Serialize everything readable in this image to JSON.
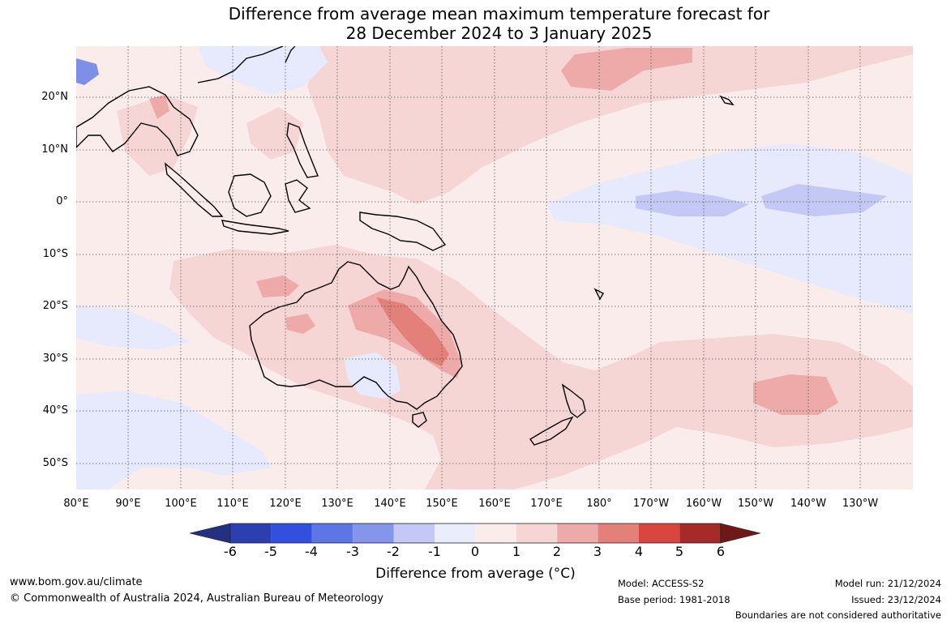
{
  "title": {
    "line1": "Difference from average mean maximum temperature forecast for",
    "line2": "28 December 2024 to 3 January 2025"
  },
  "map": {
    "lat_labels": [
      "20°N",
      "10°N",
      "0°",
      "10°S",
      "20°S",
      "30°S",
      "40°S",
      "50°S"
    ],
    "lon_labels": [
      "80°E",
      "90°E",
      "100°E",
      "110°E",
      "120°E",
      "130°E",
      "140°E",
      "150°E",
      "160°E",
      "170°E",
      "180°",
      "170°W",
      "160°W",
      "150°W",
      "140°W",
      "130°W"
    ],
    "background_color": "#fbecec"
  },
  "colorbar": {
    "title": "Difference from average (°C)",
    "ticks": [
      "-6",
      "-5",
      "-4",
      "-3",
      "-2",
      "-1",
      "0",
      "1",
      "2",
      "3",
      "4",
      "5",
      "6"
    ],
    "colors": [
      "#22307f",
      "#2b3fb0",
      "#3050dd",
      "#5c76e6",
      "#8496ea",
      "#c3c9f4",
      "#eaeefc",
      "#fbecec",
      "#f6d6d5",
      "#edaaa8",
      "#e38079",
      "#d9463e",
      "#a52a28",
      "#6e1917"
    ]
  },
  "footer": {
    "website": "www.bom.gov.au/climate",
    "copyright": "© Commonwealth of Australia 2024, Australian Bureau of Meteorology",
    "model": "Model: ACCESS-S2",
    "base_period": "Base period: 1981-2018",
    "model_run": "Model run: 21/12/2024",
    "issued": "Issued: 23/12/2024",
    "disclaimer": "Boundaries are not considered authoritative"
  }
}
